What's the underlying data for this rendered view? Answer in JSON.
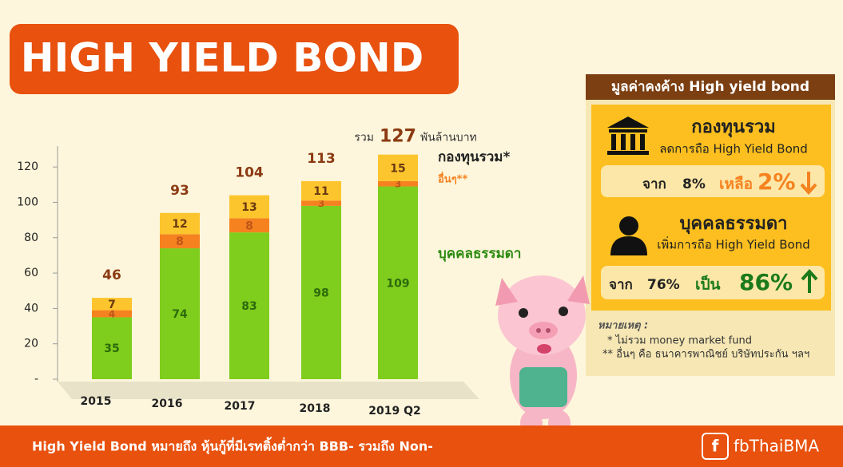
{
  "header": {
    "title": "HIGH YIELD BOND"
  },
  "chart_data": {
    "type": "bar",
    "stacked": true,
    "categories": [
      "2015",
      "2016",
      "2017",
      "2018",
      "2019 Q2"
    ],
    "series": [
      {
        "name": "บุคคลธรรมดา",
        "color": "#7fcd1c",
        "label_color": "#2d6a0c",
        "values": [
          35,
          74,
          83,
          98,
          109
        ]
      },
      {
        "name": "อื่นๆ**",
        "color": "#f5821f",
        "label_color": "#c0561a",
        "values": [
          4,
          8,
          8,
          3,
          3
        ]
      },
      {
        "name": "กองทุนรวม*",
        "color": "#fdc52d",
        "label_color": "#6b3a10",
        "values": [
          7,
          12,
          13,
          11,
          15
        ]
      }
    ],
    "totals": [
      46,
      93,
      104,
      113,
      127
    ],
    "total_prefix": "รวม",
    "total_unit": "พันล้านบาท",
    "ylim": [
      0,
      130
    ],
    "yticks": [
      {
        "value": 0,
        "label": "-"
      },
      20,
      40,
      60,
      80,
      100,
      120
    ]
  },
  "panel": {
    "title": "มูลค่าคงค้าง High yield bond",
    "fund": {
      "title": "กองทุนรวม",
      "subtitle": "ลดการถือ High Yield Bond",
      "from_word": "จาก",
      "from": "8%",
      "to_word": "เหลือ",
      "to": "2%"
    },
    "person": {
      "title": "บุคคลธรรมดา",
      "subtitle": "เพิ่มการถือ High Yield Bond",
      "from_word": "จาก",
      "from": "76%",
      "to_word": "เป็น",
      "to": "86%"
    },
    "note_title": "หมายเหตุ :",
    "notes": [
      "* ไม่รวม money market fund",
      "** อื่นๆ คือ ธนาคารพาณิชย์ บริษัทประกัน ฯลฯ"
    ]
  },
  "footer": {
    "text": "High Yield Bond  หมายถึง หุ้นกู้ที่มีเรทติ้งต่ำกว่า BBB- รวมถึง Non-",
    "brand": "fbThaiBMA"
  }
}
